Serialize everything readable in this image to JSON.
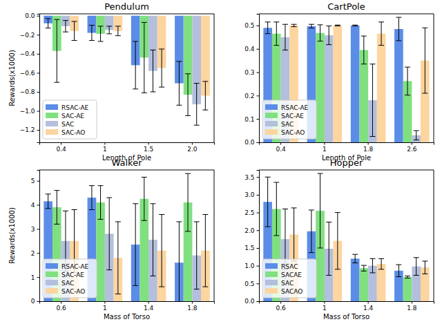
{
  "chart_data": [
    {
      "type": "bar",
      "title": "Pendulum",
      "x_label": "Length of Pole",
      "y_label": "Rewards(x1000)",
      "categories": [
        "0.4",
        "1",
        "1.5",
        "2.0"
      ],
      "series": [
        {
          "name": "RSAC-AE",
          "color": "#5b8de8",
          "values": [
            -0.08,
            -0.18,
            -0.52,
            -0.71
          ],
          "errors": [
            0.05,
            0.08,
            0.25,
            0.23
          ]
        },
        {
          "name": "SAC-AE",
          "color": "#80e080",
          "values": [
            -0.37,
            -0.19,
            -0.44,
            -0.83
          ],
          "errors": [
            0.33,
            0.08,
            0.37,
            0.22
          ]
        },
        {
          "name": "SAC",
          "color": "#b3bfdc",
          "values": [
            -0.11,
            -0.15,
            -0.58,
            -0.93
          ],
          "errors": [
            0.06,
            0.04,
            0.22,
            0.22
          ]
        },
        {
          "name": "SAC-AO",
          "color": "#fdd59f",
          "values": [
            -0.16,
            -0.16,
            -0.55,
            -0.84
          ],
          "errors": [
            0.1,
            0.05,
            0.2,
            0.15
          ]
        }
      ],
      "ylim": [
        -1.33,
        0.02
      ],
      "yticks": [
        {
          "value": -1.2,
          "label": "−1.2"
        },
        {
          "value": -1.0,
          "label": "−1.0"
        },
        {
          "value": -0.8,
          "label": "−0.8"
        },
        {
          "value": -0.6,
          "label": "−0.6"
        },
        {
          "value": -0.4,
          "label": "−0.4"
        },
        {
          "value": -0.2,
          "label": "−0.2"
        },
        {
          "value": 0,
          "label": "0.0"
        }
      ],
      "legend": "lower left"
    },
    {
      "type": "bar",
      "title": "CartPole",
      "x_label": "Length of Pole",
      "categories": [
        "0.4",
        "1",
        "1.8",
        "2.6"
      ],
      "series": [
        {
          "name": "RSAC-AE",
          "color": "#5b8de8",
          "values": [
            0.49,
            0.497,
            0.5,
            0.485
          ],
          "errors": [
            0.025,
            0.008,
            0.002,
            0.05
          ]
        },
        {
          "name": "SAC-AE",
          "color": "#80e080",
          "values": [
            0.465,
            0.468,
            0.395,
            0.262
          ],
          "errors": [
            0.05,
            0.035,
            0.06,
            0.06
          ]
        },
        {
          "name": "SAC",
          "color": "#b3bfdc",
          "values": [
            0.45,
            0.458,
            0.18,
            0.03
          ],
          "errors": [
            0.055,
            0.04,
            0.155,
            0.02
          ]
        },
        {
          "name": "SAC-AO",
          "color": "#fdd59f",
          "values": [
            0.5,
            0.5,
            0.465,
            0.35
          ],
          "errors": [
            0.005,
            0.002,
            0.05,
            0.14
          ]
        }
      ],
      "ylim": [
        0,
        0.55
      ],
      "yticks": [
        {
          "value": 0,
          "label": "0.0"
        },
        0.1,
        0.2,
        0.3,
        0.4,
        0.5
      ],
      "legend": "lower left"
    },
    {
      "type": "bar",
      "title": "Walker",
      "x_label": "Mass of Torso",
      "y_label": "Rewards(x1000)",
      "categories": [
        "0.6",
        "1",
        "1.4",
        "1.8"
      ],
      "series": [
        {
          "name": "RSAC-AE",
          "color": "#5b8de8",
          "values": [
            4.15,
            4.3,
            2.35,
            1.6
          ],
          "errors": [
            0.3,
            0.5,
            1.7,
            1.7
          ]
        },
        {
          "name": "SAC-AE",
          "color": "#80e080",
          "values": [
            3.9,
            4.1,
            4.25,
            4.1
          ],
          "errors": [
            0.7,
            0.7,
            0.9,
            1.2
          ]
        },
        {
          "name": "SAC",
          "color": "#b3bfdc",
          "values": [
            2.5,
            2.8,
            2.55,
            1.9
          ],
          "errors": [
            1.25,
            1.5,
            1.5,
            1.4
          ]
        },
        {
          "name": "SAC-AO",
          "color": "#fdd59f",
          "values": [
            2.5,
            1.8,
            2.1,
            2.1
          ],
          "errors": [
            1.3,
            1.5,
            1.5,
            1.5
          ]
        }
      ],
      "ylim": [
        0,
        5.45
      ],
      "yticks": [
        0,
        1,
        2,
        3,
        4,
        5
      ],
      "legend": "lower left"
    },
    {
      "type": "bar",
      "title": "Hopper",
      "x_label": "Mass of Torso",
      "categories": [
        "0.6",
        "1",
        "1.4",
        "1.8"
      ],
      "series": [
        {
          "name": "RSAC",
          "color": "#5b8de8",
          "values": [
            2.8,
            1.97,
            1.2,
            0.86
          ],
          "errors": [
            0.7,
            0.6,
            0.12,
            0.17
          ]
        },
        {
          "name": "SACAE",
          "color": "#80e080",
          "values": [
            2.6,
            2.55,
            0.93,
            0.68
          ],
          "errors": [
            0.75,
            1.05,
            0.08,
            0.03
          ]
        },
        {
          "name": "SAC",
          "color": "#b3bfdc",
          "values": [
            1.75,
            1.48,
            1.0,
            0.98
          ],
          "errors": [
            0.85,
            0.75,
            0.2,
            0.25
          ]
        },
        {
          "name": "SACAO",
          "color": "#fdd59f",
          "values": [
            1.88,
            1.7,
            1.05,
            0.95
          ],
          "errors": [
            0.75,
            0.8,
            0.15,
            0.18
          ]
        }
      ],
      "ylim": [
        0,
        3.7
      ],
      "yticks": [
        {
          "value": 0,
          "label": "0.0"
        },
        0.5,
        {
          "value": 1,
          "label": "1.0"
        },
        1.5,
        {
          "value": 2,
          "label": "2.0"
        },
        2.5,
        {
          "value": 3,
          "label": "3.0"
        },
        3.5
      ],
      "legend": "lower left"
    }
  ]
}
